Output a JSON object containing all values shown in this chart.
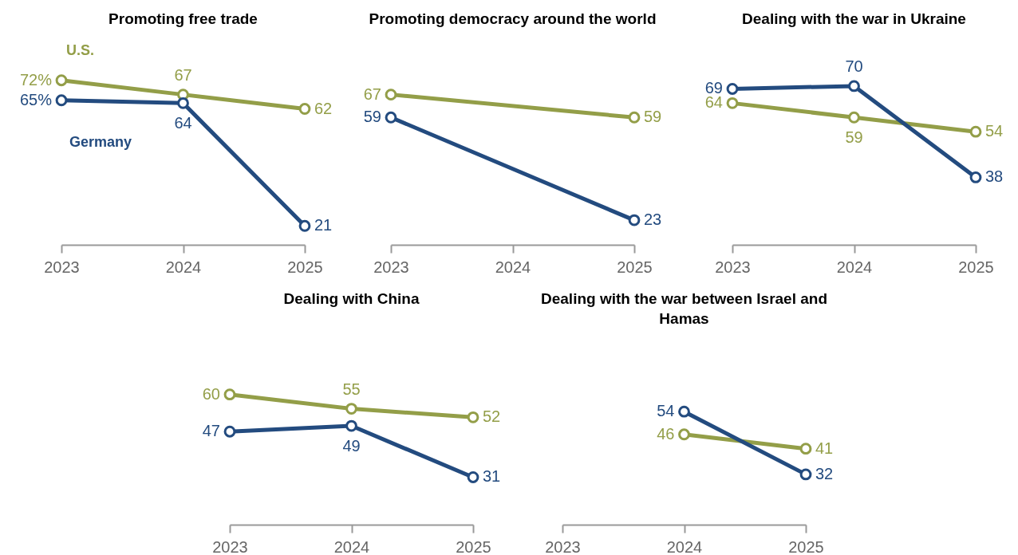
{
  "chart_data": [
    {
      "type": "line",
      "title": "Promoting free trade",
      "categories": [
        "2023",
        "2024",
        "2025"
      ],
      "marker": "circle",
      "tick_labels": "x",
      "series": [
        {
          "name": "U.S.",
          "color": "#939e48",
          "values": [
            72,
            67,
            62
          ],
          "value_labels": [
            "72%",
            "67",
            "62"
          ]
        },
        {
          "name": "Germany",
          "color": "#234b7f",
          "values": [
            65,
            64,
            21
          ],
          "value_labels": [
            "65%",
            "64",
            "21"
          ]
        }
      ]
    },
    {
      "type": "line",
      "title": "Promoting democracy around the world",
      "categories": [
        "2023",
        "2024",
        "2025"
      ],
      "marker": "circle",
      "tick_labels": "x",
      "data_labels": true,
      "series": [
        {
          "color": "#939e48",
          "values": [
            67,
            null,
            59
          ]
        },
        {
          "color": "#234b7f",
          "values": [
            59,
            null,
            23
          ]
        }
      ]
    },
    {
      "type": "line",
      "title": "Dealing with the war in Ukraine",
      "categories": [
        "2023",
        "2024",
        "2025"
      ],
      "marker": "circle",
      "tick_labels": "x",
      "data_labels": true,
      "series": [
        {
          "color": "#939e48",
          "values": [
            64,
            59,
            54
          ]
        },
        {
          "color": "#234b7f",
          "values": [
            69,
            70,
            38
          ]
        }
      ]
    },
    {
      "type": "line",
      "title": "Dealing with China",
      "categories": [
        "2023",
        "2024",
        "2025"
      ],
      "marker": "circle",
      "tick_labels": "x",
      "data_labels": true,
      "series": [
        {
          "color": "#939e48",
          "values": [
            60,
            55,
            52
          ]
        },
        {
          "color": "#234b7f",
          "values": [
            47,
            49,
            31
          ]
        }
      ]
    },
    {
      "type": "line",
      "title": "Dealing with the war between Israel and Hamas",
      "categories": [
        "2023",
        "2024",
        "2025"
      ],
      "marker": "circle",
      "tick_labels": "x",
      "data_labels": true,
      "series": [
        {
          "color": "#939e48",
          "values": [
            null,
            46,
            41
          ]
        },
        {
          "color": "#234b7f",
          "values": [
            null,
            54,
            32
          ]
        }
      ]
    }
  ]
}
